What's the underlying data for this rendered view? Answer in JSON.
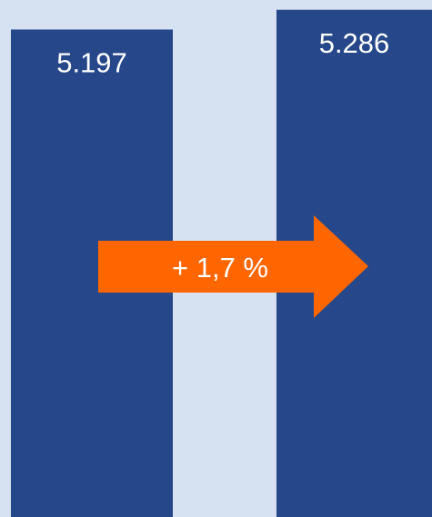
{
  "chart_data": {
    "type": "bar",
    "categories": [
      null,
      null
    ],
    "values": [
      5197,
      5286
    ],
    "value_labels": [
      "5.197",
      "5.286"
    ],
    "color": "#26478a",
    "ylim": [
      3000,
      5330
    ],
    "annotation": "+ 1,7 %",
    "annotation_color": "#ff6600"
  }
}
